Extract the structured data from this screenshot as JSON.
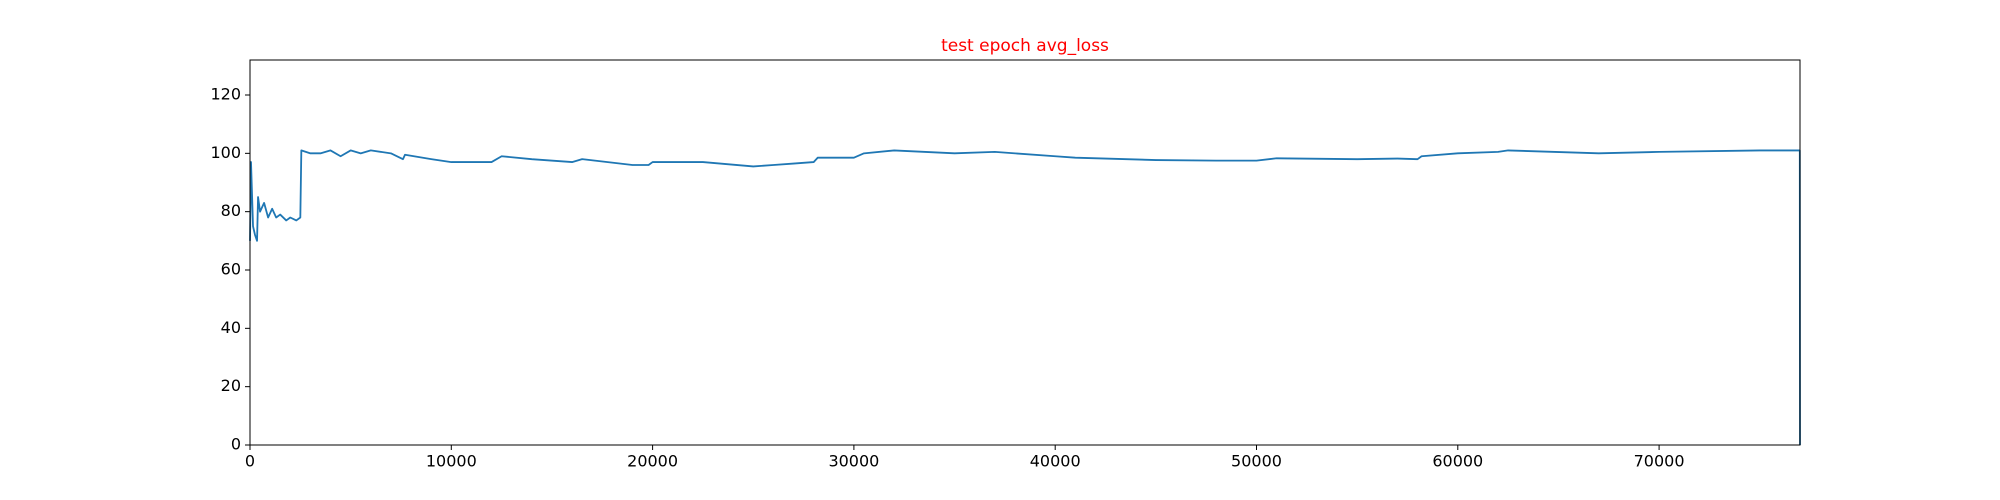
{
  "chart_data": {
    "type": "line",
    "title": "test epoch avg_loss",
    "title_color": "#ff0000",
    "x": [
      0,
      50,
      150,
      250,
      350,
      400,
      500,
      700,
      900,
      1100,
      1300,
      1500,
      1800,
      2000,
      2300,
      2500,
      2550,
      3000,
      3500,
      4000,
      4500,
      5000,
      5500,
      6000,
      7000,
      7600,
      7700,
      9000,
      10000,
      11000,
      12000,
      12500,
      14000,
      16000,
      16500,
      19000,
      19800,
      20000,
      22000,
      22500,
      25000,
      26000,
      27000,
      28000,
      28200,
      30000,
      30500,
      32000,
      35000,
      37000,
      40000,
      41000,
      45000,
      48000,
      50000,
      51000,
      55000,
      57000,
      58000,
      58200,
      60000,
      62000,
      62500,
      67000,
      70000,
      75000,
      76990,
      77000
    ],
    "series": [
      {
        "color": "#1f77b4",
        "values": [
          70,
          97,
          75,
          72,
          70,
          85,
          80,
          83,
          78,
          81,
          78,
          79,
          77,
          78,
          77,
          78,
          101,
          100,
          100,
          101,
          99,
          101,
          100,
          101,
          100,
          98,
          99.5,
          98,
          97,
          97,
          97,
          99,
          98,
          97,
          98,
          96,
          96,
          97,
          97,
          97,
          95.5,
          96,
          96.5,
          97,
          98.5,
          98.5,
          100,
          101,
          100,
          100.5,
          99,
          98.5,
          97.7,
          97.5,
          97.5,
          98.3,
          98,
          98.2,
          98,
          99,
          100,
          100.5,
          101,
          100,
          100.5,
          101,
          101,
          0
        ]
      }
    ],
    "xlim": [
      0,
      77000
    ],
    "xticks": [
      0,
      10000,
      20000,
      30000,
      40000,
      50000,
      60000,
      70000
    ],
    "ylim": [
      0,
      132
    ],
    "yticks": [
      0,
      20,
      40,
      60,
      80,
      100,
      120
    ],
    "grid": false
  }
}
